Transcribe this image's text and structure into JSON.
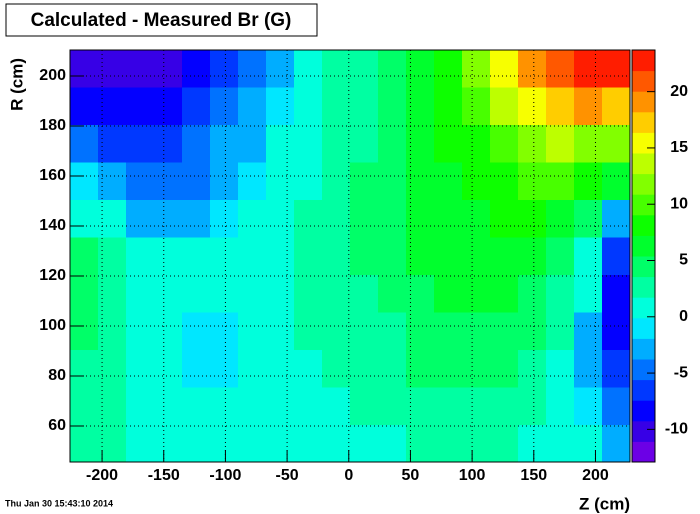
{
  "chart_data": {
    "type": "heatmap",
    "title": "Calculated - Measured Br (G)",
    "x_label": "Z (cm)",
    "y_label": "R (cm)",
    "x_bins": [
      -226,
      -203.3,
      -180.6,
      -157.9,
      -135.2,
      -112.5,
      -89.8,
      -67.1,
      -44.4,
      -21.7,
      1,
      23.7,
      46.4,
      69.1,
      91.8,
      114.5,
      137.2,
      159.9,
      182.6,
      205.3,
      228
    ],
    "y_bins": [
      45.6,
      60.6,
      75.6,
      90.6,
      105.6,
      120.6,
      135.6,
      150.6,
      165.6,
      180.6,
      195.6,
      210.4
    ],
    "z": [
      [
        3,
        2,
        1,
        1,
        1,
        0,
        0,
        1,
        1,
        1,
        1,
        1,
        2,
        2,
        2,
        2,
        1,
        1,
        0,
        -2
      ],
      [
        3,
        2,
        1,
        1,
        0,
        0,
        0,
        1,
        1,
        1,
        2,
        2,
        3,
        3,
        3,
        3,
        2,
        1,
        -1,
        -4
      ],
      [
        3,
        2,
        1,
        0,
        -1,
        -1,
        0,
        1,
        1,
        2,
        2,
        3,
        4,
        4,
        4,
        4,
        3,
        1,
        -2,
        -7
      ],
      [
        4,
        3,
        1,
        0,
        -1,
        -1,
        0,
        1,
        2,
        2,
        3,
        3,
        4,
        5,
        5,
        5,
        4,
        2,
        -2,
        -9
      ],
      [
        5,
        3,
        1,
        0,
        0,
        0,
        0,
        1,
        2,
        3,
        3,
        4,
        5,
        6,
        6,
        6,
        5,
        3,
        0,
        -8
      ],
      [
        4,
        2,
        1,
        0,
        0,
        0,
        0,
        1,
        2,
        3,
        4,
        5,
        6,
        7,
        7,
        7,
        6,
        4,
        1,
        -6
      ],
      [
        1,
        0,
        -2,
        -3,
        -2,
        -1,
        0,
        1,
        2,
        3,
        4,
        5,
        6,
        7,
        7,
        8,
        8,
        6,
        4,
        -2
      ],
      [
        -1,
        -3,
        -5,
        -5,
        -4,
        -2,
        -1,
        0,
        1,
        3,
        4,
        4,
        6,
        7,
        8,
        9,
        10,
        10,
        9,
        7
      ],
      [
        -5,
        -7,
        -7,
        -7,
        -5,
        -3,
        -2,
        0,
        1,
        2,
        3,
        4,
        6,
        8,
        9,
        10,
        12,
        13,
        12,
        11
      ],
      [
        -9,
        -9,
        -8,
        -8,
        -7,
        -5,
        -3,
        -1,
        0,
        2,
        3,
        4,
        6,
        8,
        10,
        13,
        16,
        18,
        19,
        18
      ],
      [
        -11,
        -11,
        -10,
        -10,
        -8,
        -6,
        -4,
        -2,
        0,
        2,
        3,
        4,
        6,
        9,
        12,
        16,
        19,
        21,
        22,
        22
      ]
    ],
    "xlim": [
      -226,
      228
    ],
    "ylim": [
      45.6,
      210.4
    ],
    "zlim": [
      -12.9,
      23.7
    ],
    "xticks": [
      -200,
      -150,
      -100,
      -50,
      0,
      50,
      100,
      150,
      200
    ],
    "yticks": [
      60,
      80,
      100,
      120,
      140,
      160,
      180,
      200
    ],
    "zticks": [
      -10,
      -5,
      0,
      5,
      10,
      15,
      20
    ],
    "grid": true
  },
  "timestamp": "Thu Jan 30 15:43:10 2014"
}
